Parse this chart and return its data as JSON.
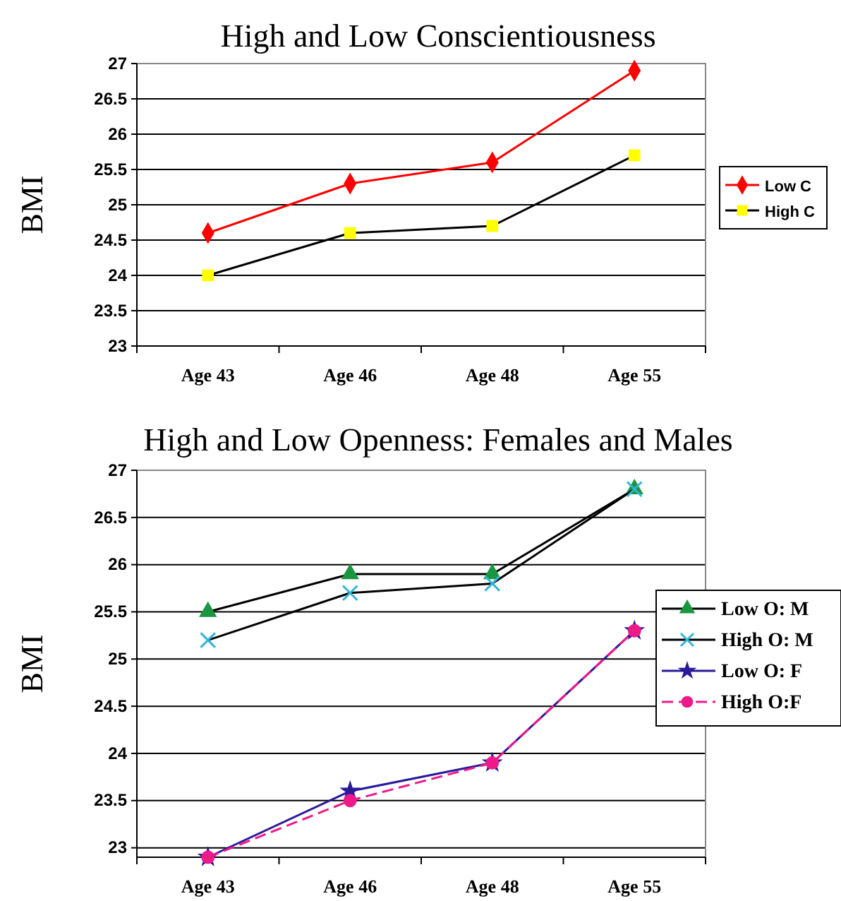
{
  "chart_data": [
    {
      "type": "line",
      "title": "High and Low Conscientiousness",
      "ylabel": "BMI",
      "categories": [
        "Age 43",
        "Age 46",
        "Age 48",
        "Age 55"
      ],
      "ylim": [
        23,
        27
      ],
      "yticks": [
        23,
        23.5,
        24,
        24.5,
        25,
        25.5,
        26,
        26.5,
        27
      ],
      "grid": "y",
      "legend": "right",
      "series": [
        {
          "name": "Low C",
          "color": "#ff0000",
          "colors": [
            "#ff0000",
            "#ff0000",
            "#ff0000",
            "#ff0000"
          ],
          "marker": "diamond",
          "line_style": "solid",
          "values": [
            24.6,
            25.3,
            25.6,
            26.9
          ]
        },
        {
          "name": "High C",
          "color": "#000000",
          "colors": [
            "#ffff00",
            "#ffff00",
            "#ffff00",
            "#ffff00"
          ],
          "marker": "square",
          "line_style": "solid",
          "values": [
            24.0,
            24.6,
            24.7,
            25.7
          ]
        }
      ]
    },
    {
      "type": "line",
      "title": "High and Low Openness: Females and Males",
      "ylabel": "BMI",
      "categories": [
        "Age 43",
        "Age 46",
        "Age 48",
        "Age 55"
      ],
      "ylim": [
        22.9,
        27
      ],
      "yticks": [
        23,
        23.5,
        24,
        24.5,
        25,
        25.5,
        26,
        26.5,
        27
      ],
      "grid": "y",
      "legend": "right",
      "series": [
        {
          "name": "Low O: M",
          "color": "#000000",
          "colors": [
            "#1a9641",
            "#1a9641",
            "#1a9641",
            "#1a9641"
          ],
          "marker": "triangle",
          "line_style": "solid",
          "values": [
            25.5,
            25.9,
            25.9,
            26.8
          ]
        },
        {
          "name": "High O: M",
          "color": "#000000",
          "colors": [
            "#33b5d6",
            "#33b5d6",
            "#33b5d6",
            "#33b5d6"
          ],
          "marker": "cross",
          "line_style": "solid",
          "values": [
            25.2,
            25.7,
            25.8,
            26.8
          ]
        },
        {
          "name": "Low O: F",
          "color": "#2a1a99",
          "colors": [
            "#2a1a99",
            "#2a1a99",
            "#2a1a99",
            "#2a1a99"
          ],
          "marker": "star",
          "line_style": "solid",
          "values": [
            22.9,
            23.6,
            23.9,
            25.3
          ]
        },
        {
          "name": "High O:F",
          "color": "#ee1a8a",
          "colors": [
            "#ee1a8a",
            "#ee1a8a",
            "#ee1a8a",
            "#ee1a8a"
          ],
          "marker": "circle",
          "line_style": "dashed",
          "values": [
            22.9,
            23.5,
            23.9,
            25.3
          ]
        }
      ]
    }
  ]
}
